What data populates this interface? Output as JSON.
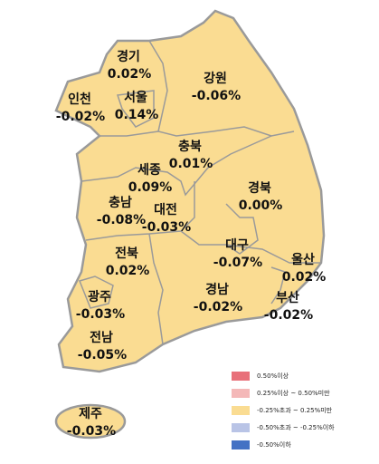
{
  "regions": [
    {
      "name": "경기",
      "value": "0.02%"
    },
    {
      "name": "인천",
      "value": "-0.02%"
    },
    {
      "name": "서울",
      "value": "0.14%"
    },
    {
      "name": "강원",
      "value": "-0.06%"
    },
    {
      "name": "충북",
      "value": "0.01%"
    },
    {
      "name": "세종",
      "value": "0.09%"
    },
    {
      "name": "충남",
      "value": "-0.08%"
    },
    {
      "name": "대전",
      "value": "-0.03%"
    },
    {
      "name": "경북",
      "value": "0.00%"
    },
    {
      "name": "대구",
      "value": "-0.07%"
    },
    {
      "name": "울산",
      "value": "0.02%"
    },
    {
      "name": "전북",
      "value": "0.02%"
    },
    {
      "name": "경남",
      "value": "-0.02%"
    },
    {
      "name": "부산",
      "value": "-0.02%"
    },
    {
      "name": "광주",
      "value": "-0.03%"
    },
    {
      "name": "전남",
      "value": "-0.05%"
    },
    {
      "name": "제주",
      "value": "-0.03%"
    }
  ],
  "legend": [
    {
      "label": "0.50%이상",
      "color": "#e8707a"
    },
    {
      "label": "0.25%이상 ~ 0.50%미만",
      "color": "#f4b8b8"
    },
    {
      "label": "-0.25%초과 ~ 0.25%미만",
      "color": "#fadc92"
    },
    {
      "label": "-0.50%초과 ~ -0.25%이하",
      "color": "#b9c4e6"
    },
    {
      "label": "-0.50%이하",
      "color": "#4472c4"
    }
  ]
}
